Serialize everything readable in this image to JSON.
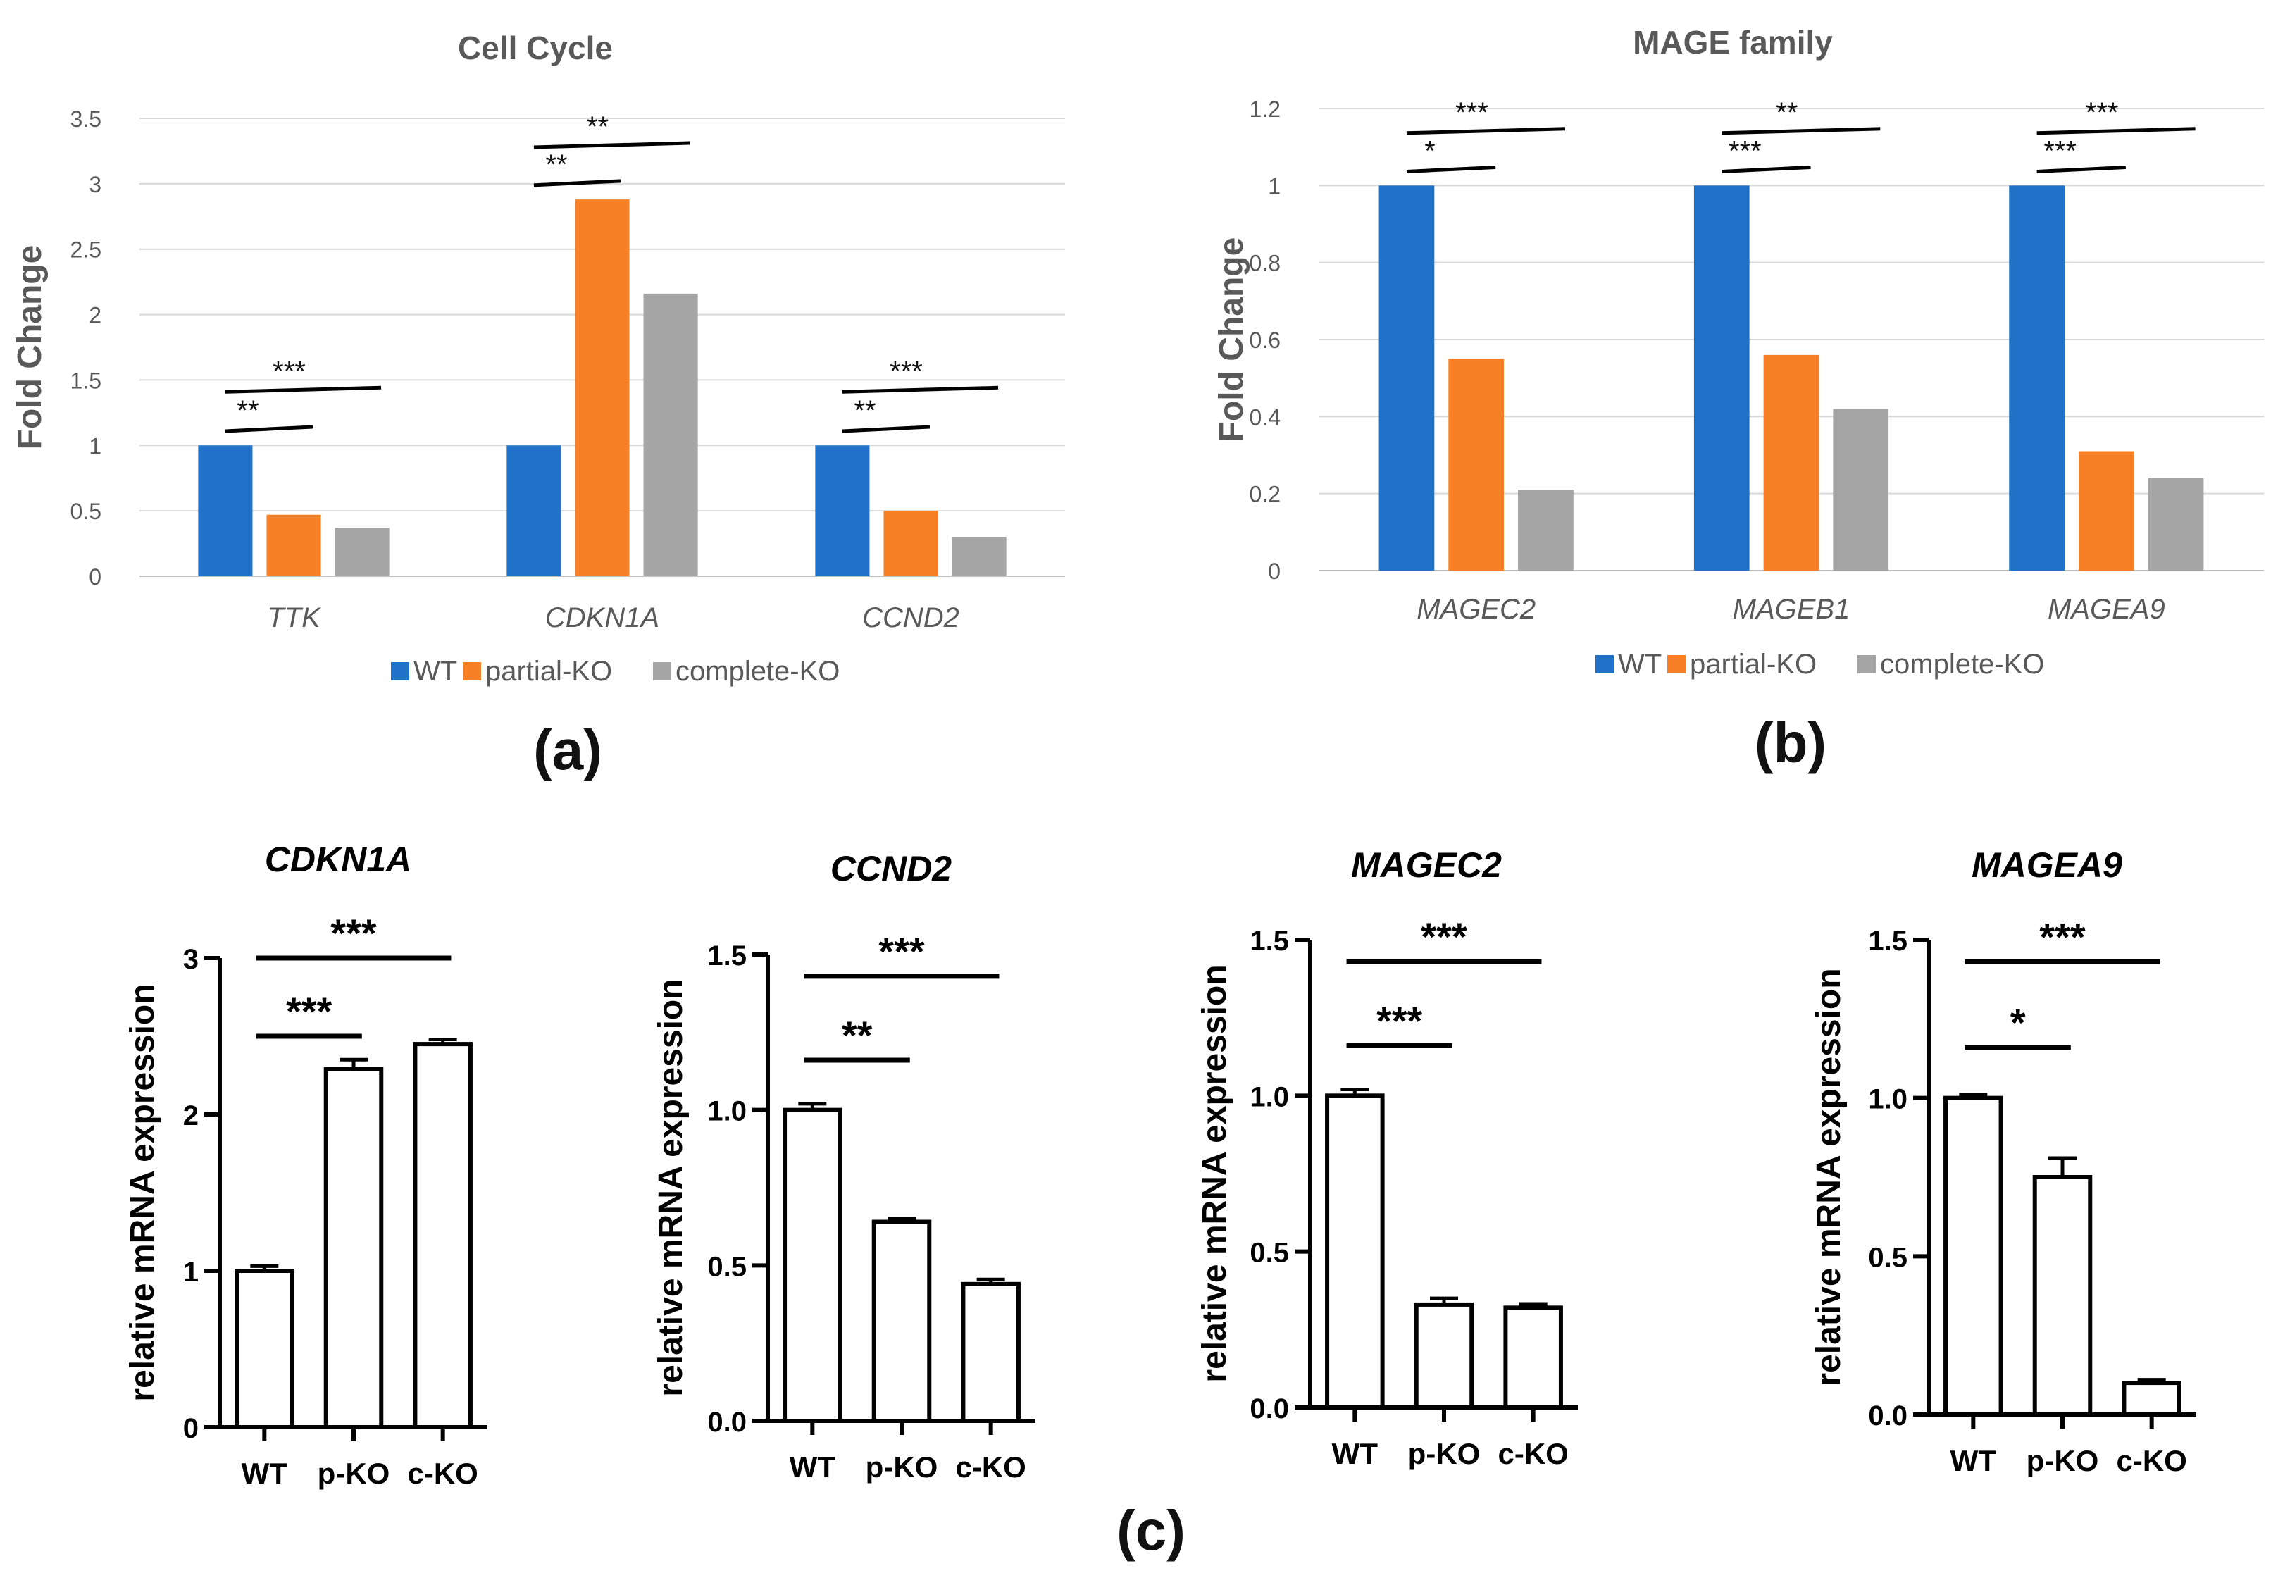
{
  "figure": {
    "panel_labels": [
      "(a)",
      "(b)",
      "(c)"
    ]
  },
  "colors": {
    "WT": "#1f72c8",
    "partial-KO": "#f77f26",
    "complete-KO": "#a5a5a5",
    "grid": "#d9d9d9",
    "axis_text": "#595959"
  },
  "chart_data": [
    {
      "id": "cell-cycle",
      "panel": "(a)",
      "type": "bar",
      "title": "Cell Cycle",
      "ylabel": "Fold Change",
      "xlabel": "",
      "ylim": [
        0,
        3.5
      ],
      "yticks": [
        "0",
        "0.5",
        "1",
        "1.5",
        "2",
        "2.5",
        "3",
        "3.5"
      ],
      "grid": true,
      "legend": "bottom",
      "categories": [
        "TTK",
        "CDKN1A",
        "CCND2"
      ],
      "series": [
        {
          "name": "WT",
          "values": [
            1,
            1,
            1
          ]
        },
        {
          "name": "partial-KO",
          "values": [
            0.47,
            2.88,
            0.5
          ]
        },
        {
          "name": "complete-KO",
          "values": [
            0.37,
            2.16,
            0.3
          ]
        }
      ],
      "significance": [
        {
          "category": 0,
          "from": 0,
          "to": 1,
          "label": "**",
          "y": 1.12
        },
        {
          "category": 0,
          "from": 0,
          "to": 2,
          "label": "***",
          "y": 1.42
        },
        {
          "category": 1,
          "from": 0,
          "to": 1,
          "label": "**",
          "y": 3.0
        },
        {
          "category": 1,
          "from": 0,
          "to": 2,
          "label": "**",
          "y": 3.29
        },
        {
          "category": 2,
          "from": 0,
          "to": 1,
          "label": "**",
          "y": 1.12
        },
        {
          "category": 2,
          "from": 0,
          "to": 2,
          "label": "***",
          "y": 1.42
        }
      ]
    },
    {
      "id": "mage-family",
      "panel": "(b)",
      "type": "bar",
      "title": "MAGE family",
      "ylabel": "Fold Change",
      "xlabel": "",
      "ylim": [
        0,
        1.2
      ],
      "yticks": [
        "0",
        "0.2",
        "0.4",
        "0.6",
        "0.8",
        "1",
        "1.2"
      ],
      "grid": true,
      "legend": "bottom",
      "categories": [
        "MAGEC2",
        "MAGEB1",
        "MAGEA9"
      ],
      "series": [
        {
          "name": "WT",
          "values": [
            1,
            1,
            1
          ]
        },
        {
          "name": "partial-KO",
          "values": [
            0.55,
            0.56,
            0.31
          ]
        },
        {
          "name": "complete-KO",
          "values": [
            0.21,
            0.42,
            0.24
          ]
        }
      ],
      "significance": [
        {
          "category": 0,
          "from": 0,
          "to": 1,
          "label": "*",
          "y": 1.04
        },
        {
          "category": 0,
          "from": 0,
          "to": 2,
          "label": "***",
          "y": 1.14
        },
        {
          "category": 1,
          "from": 0,
          "to": 1,
          "label": "***",
          "y": 1.04
        },
        {
          "category": 1,
          "from": 0,
          "to": 2,
          "label": "**",
          "y": 1.14
        },
        {
          "category": 2,
          "from": 0,
          "to": 1,
          "label": "***",
          "y": 1.04
        },
        {
          "category": 2,
          "from": 0,
          "to": 2,
          "label": "***",
          "y": 1.14
        }
      ]
    },
    {
      "id": "cdkn1a-qpcr",
      "panel": "(c)",
      "type": "bar",
      "title": "CDKN1A",
      "ylabel": "relative mRNA expression",
      "xlabel": "",
      "ylim": [
        0,
        3
      ],
      "yticks": [
        "0",
        "1",
        "2",
        "3"
      ],
      "grid": false,
      "categories": [
        "WT",
        "p-KO",
        "c-KO"
      ],
      "values": [
        1.0,
        2.29,
        2.45
      ],
      "errors": [
        0.03,
        0.06,
        0.03
      ],
      "significance": [
        {
          "from": 0,
          "to": 1,
          "label": "***",
          "y": 2.5
        },
        {
          "from": 0,
          "to": 2,
          "label": "***",
          "y": 3.0
        }
      ]
    },
    {
      "id": "ccnd2-qpcr",
      "panel": "(c)",
      "type": "bar",
      "title": "CCND2",
      "ylabel": "relative mRNA expression",
      "xlabel": "",
      "ylim": [
        0,
        1.5
      ],
      "yticks": [
        "0.0",
        "0.5",
        "1.0",
        "1.5"
      ],
      "grid": false,
      "categories": [
        "WT",
        "p-KO",
        "c-KO"
      ],
      "values": [
        1.0,
        0.64,
        0.44
      ],
      "errors": [
        0.02,
        0.01,
        0.015
      ],
      "significance": [
        {
          "from": 0,
          "to": 1,
          "label": "**",
          "y": 1.16
        },
        {
          "from": 0,
          "to": 2,
          "label": "***",
          "y": 1.43
        }
      ]
    },
    {
      "id": "magec2-qpcr",
      "panel": "(c)",
      "type": "bar",
      "title": "MAGEC2",
      "ylabel": "relative mRNA expression",
      "xlabel": "",
      "ylim": [
        0,
        1.5
      ],
      "yticks": [
        "0.0",
        "0.5",
        "1.0",
        "1.5"
      ],
      "grid": false,
      "categories": [
        "WT",
        "p-KO",
        "c-KO"
      ],
      "values": [
        1.0,
        0.33,
        0.32
      ],
      "errors": [
        0.02,
        0.02,
        0.012
      ],
      "significance": [
        {
          "from": 0,
          "to": 1,
          "label": "***",
          "y": 1.16
        },
        {
          "from": 0,
          "to": 2,
          "label": "***",
          "y": 1.43
        }
      ]
    },
    {
      "id": "magea9-qpcr",
      "panel": "(c)",
      "type": "bar",
      "title": "MAGEA9",
      "ylabel": "relative mRNA expression",
      "xlabel": "",
      "ylim": [
        0,
        1.5
      ],
      "yticks": [
        "0.0",
        "0.5",
        "1.0",
        "1.5"
      ],
      "grid": false,
      "categories": [
        "WT",
        "p-KO",
        "c-KO"
      ],
      "values": [
        1.0,
        0.75,
        0.1
      ],
      "errors": [
        0.01,
        0.06,
        0.01
      ],
      "significance": [
        {
          "from": 0,
          "to": 1,
          "label": "*",
          "y": 1.16
        },
        {
          "from": 0,
          "to": 2,
          "label": "***",
          "y": 1.43
        }
      ]
    }
  ]
}
